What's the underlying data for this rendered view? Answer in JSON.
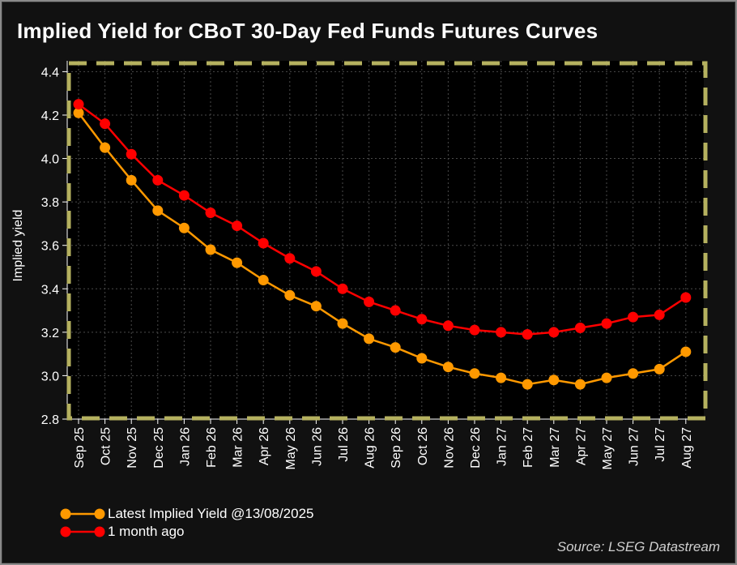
{
  "chart_data": {
    "type": "line",
    "title": "Implied Yield for CBoT 30-Day Fed Funds Futures Curves",
    "xlabel": "",
    "ylabel": "Implied yield",
    "ylim": [
      2.8,
      4.45
    ],
    "yticks": [
      "2.8",
      "3.0",
      "3.2",
      "3.4",
      "3.6",
      "3.8",
      "4.0",
      "4.2",
      "4.4"
    ],
    "categories": [
      "Sep 25",
      "Oct 25",
      "Nov 25",
      "Dec 25",
      "Jan 26",
      "Feb 26",
      "Mar 26",
      "Apr 26",
      "May 26",
      "Jun 26",
      "Jul 26",
      "Aug 26",
      "Sep 26",
      "Oct 26",
      "Nov 26",
      "Dec 26",
      "Jan 27",
      "Feb 27",
      "Mar 27",
      "Apr 27",
      "May 27",
      "Jun 27",
      "Jul 27",
      "Aug 27"
    ],
    "series": [
      {
        "name": "Latest Implied Yield @13/08/2025",
        "color": "#ff9900",
        "values": [
          4.21,
          4.05,
          3.9,
          3.76,
          3.68,
          3.58,
          3.52,
          3.44,
          3.37,
          3.32,
          3.24,
          3.17,
          3.13,
          3.08,
          3.04,
          3.01,
          2.99,
          2.96,
          2.98,
          2.96,
          2.99,
          3.01,
          3.03,
          3.11
        ]
      },
      {
        "name": "1 month ago",
        "color": "#ff0000",
        "values": [
          4.25,
          4.16,
          4.02,
          3.9,
          3.83,
          3.75,
          3.69,
          3.61,
          3.54,
          3.48,
          3.4,
          3.34,
          3.3,
          3.26,
          3.23,
          3.21,
          3.2,
          3.19,
          3.2,
          3.22,
          3.24,
          3.27,
          3.28,
          3.36
        ]
      }
    ],
    "grid": true,
    "legend": "bottom-left",
    "highlight_box_color": "#b5b15f",
    "source": "Source: LSEG Datastream"
  }
}
